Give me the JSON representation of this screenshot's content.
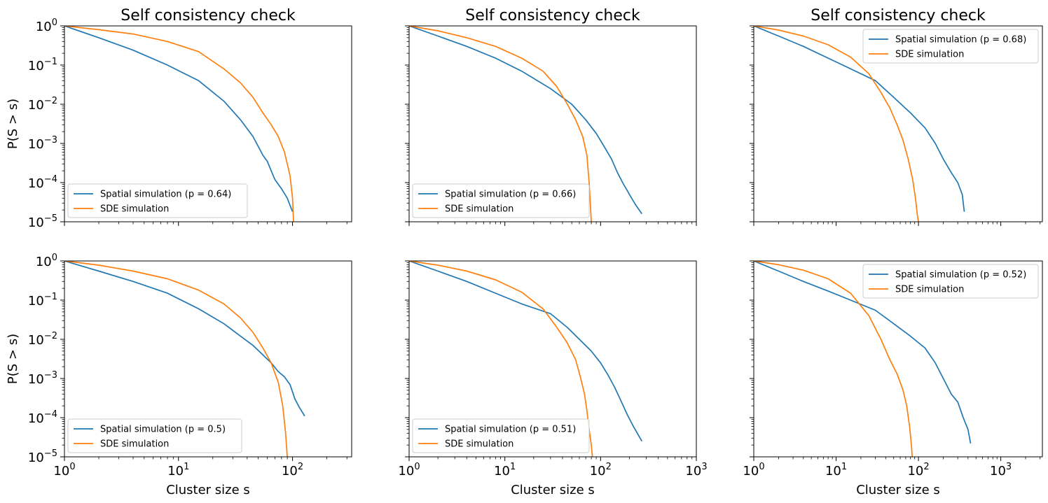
{
  "figure": {
    "colors": {
      "spatial": "#1f77b4",
      "sde": "#ff7f0e"
    }
  },
  "chart_data": [
    {
      "type": "line",
      "title": "Self consistency check",
      "xlabel": "",
      "ylabel": "P(S > s)",
      "xscale": "log",
      "yscale": "log",
      "xlim": [
        1,
        330
      ],
      "ylim": [
        1e-05,
        1
      ],
      "xticks": [],
      "yticks": [
        "10^0",
        "10^-1",
        "10^-2",
        "10^-3",
        "10^-4",
        "10^-5"
      ],
      "legend": "lower-left",
      "series": [
        {
          "name": "Spatial simulation (p = 0.64)",
          "x": [
            1,
            2,
            4,
            8,
            15,
            25,
            35,
            45,
            55,
            60,
            65,
            70,
            80,
            90,
            100
          ],
          "y": [
            1,
            0.5,
            0.24,
            0.1,
            0.04,
            0.012,
            0.004,
            0.0015,
            0.0005,
            0.00035,
            0.0002,
            0.00012,
            7e-05,
            4e-05,
            1.8e-05
          ]
        },
        {
          "name": "SDE simulation",
          "x": [
            1,
            2,
            4,
            8,
            15,
            25,
            35,
            45,
            55,
            65,
            75,
            85,
            95,
            100,
            102
          ],
          "y": [
            1,
            0.8,
            0.62,
            0.4,
            0.22,
            0.08,
            0.035,
            0.015,
            0.006,
            0.003,
            0.0015,
            0.0006,
            0.00015,
            4e-05,
            1e-05
          ]
        }
      ]
    },
    {
      "type": "line",
      "title": "Self consistency check",
      "xlabel": "",
      "ylabel": "",
      "xscale": "log",
      "yscale": "log",
      "xlim": [
        1,
        1000
      ],
      "ylim": [
        1e-05,
        1
      ],
      "xticks": [],
      "yticks": [],
      "legend": "lower-left",
      "series": [
        {
          "name": "Spatial simulation (p = 0.66)",
          "x": [
            1,
            2,
            4,
            8,
            15,
            30,
            50,
            70,
            90,
            110,
            130,
            150,
            170,
            200,
            230,
            270
          ],
          "y": [
            1,
            0.55,
            0.3,
            0.15,
            0.07,
            0.025,
            0.01,
            0.004,
            0.0018,
            0.0008,
            0.0004,
            0.00018,
            0.0001,
            5e-05,
            2.8e-05,
            1.6e-05
          ]
        },
        {
          "name": "SDE simulation",
          "x": [
            1,
            2,
            4,
            8,
            15,
            25,
            35,
            45,
            55,
            65,
            72,
            76,
            78,
            80
          ],
          "y": [
            1,
            0.75,
            0.5,
            0.3,
            0.15,
            0.07,
            0.028,
            0.01,
            0.004,
            0.0015,
            0.0005,
            0.0001,
            3e-05,
            1e-05
          ]
        }
      ]
    },
    {
      "type": "line",
      "title": "Self consistency check",
      "xlabel": "",
      "ylabel": "",
      "xscale": "log",
      "yscale": "log",
      "xlim": [
        1,
        3200
      ],
      "ylim": [
        1e-05,
        1
      ],
      "xticks": [],
      "yticks": [],
      "legend": "upper-right",
      "series": [
        {
          "name": "Spatial simulation (p = 0.68)",
          "x": [
            1,
            2,
            4,
            8,
            15,
            30,
            50,
            80,
            120,
            160,
            200,
            250,
            300,
            340,
            360
          ],
          "y": [
            1,
            0.55,
            0.3,
            0.15,
            0.08,
            0.04,
            0.015,
            0.006,
            0.0025,
            0.001,
            0.0004,
            0.00018,
            0.0001,
            5e-05,
            1.8e-05
          ]
        },
        {
          "name": "SDE simulation",
          "x": [
            1,
            2,
            4,
            8,
            15,
            25,
            35,
            45,
            55,
            65,
            75,
            85,
            92,
            97,
            100
          ],
          "y": [
            1,
            0.78,
            0.55,
            0.33,
            0.16,
            0.06,
            0.02,
            0.008,
            0.003,
            0.0012,
            0.0004,
            0.00012,
            4e-05,
            1.5e-05,
            1e-05
          ]
        }
      ]
    },
    {
      "type": "line",
      "title": "",
      "xlabel": "Cluster size s",
      "ylabel": "P(S > s)",
      "xscale": "log",
      "yscale": "log",
      "xlim": [
        1,
        330
      ],
      "ylim": [
        1e-05,
        1
      ],
      "xticks": [
        "10^0",
        "10^1",
        "10^2"
      ],
      "yticks": [
        "10^0",
        "10^-1",
        "10^-2",
        "10^-3",
        "10^-4",
        "10^-5"
      ],
      "legend": "lower-left",
      "series": [
        {
          "name": "Spatial simulation (p = 0.5)",
          "x": [
            1,
            2,
            4,
            8,
            15,
            25,
            35,
            45,
            55,
            65,
            75,
            85,
            95,
            105,
            115,
            128
          ],
          "y": [
            1,
            0.55,
            0.3,
            0.15,
            0.06,
            0.025,
            0.012,
            0.007,
            0.004,
            0.0025,
            0.0015,
            0.0011,
            0.0007,
            0.0003,
            0.00018,
            0.00011
          ]
        },
        {
          "name": "SDE simulation",
          "x": [
            1,
            2,
            4,
            8,
            15,
            25,
            35,
            45,
            55,
            65,
            75,
            82,
            87,
            90
          ],
          "y": [
            1,
            0.78,
            0.55,
            0.35,
            0.18,
            0.08,
            0.035,
            0.015,
            0.006,
            0.0025,
            0.0008,
            0.0002,
            4e-05,
            1e-05
          ]
        }
      ]
    },
    {
      "type": "line",
      "title": "",
      "xlabel": "Cluster size s",
      "ylabel": "",
      "xscale": "log",
      "yscale": "log",
      "xlim": [
        1,
        1000
      ],
      "ylim": [
        1e-05,
        1
      ],
      "xticks": [
        "10^0",
        "10^1",
        "10^2",
        "10^3"
      ],
      "yticks": [],
      "legend": "lower-left",
      "series": [
        {
          "name": "Spatial simulation (p = 0.51)",
          "x": [
            1,
            2,
            4,
            8,
            15,
            30,
            45,
            60,
            80,
            100,
            120,
            140,
            160,
            190,
            220,
            270
          ],
          "y": [
            1,
            0.55,
            0.3,
            0.15,
            0.08,
            0.045,
            0.02,
            0.01,
            0.005,
            0.0025,
            0.0012,
            0.0006,
            0.0003,
            0.00012,
            6e-05,
            2.5e-05
          ]
        },
        {
          "name": "SDE simulation",
          "x": [
            1,
            2,
            4,
            8,
            15,
            25,
            35,
            45,
            55,
            62,
            68,
            72,
            76,
            80,
            82
          ],
          "y": [
            1,
            0.78,
            0.55,
            0.33,
            0.16,
            0.06,
            0.02,
            0.008,
            0.003,
            0.001,
            0.0004,
            0.00015,
            5e-05,
            2e-05,
            1e-05
          ]
        }
      ]
    },
    {
      "type": "line",
      "title": "",
      "xlabel": "Cluster size s",
      "ylabel": "",
      "xscale": "log",
      "yscale": "log",
      "xlim": [
        1,
        3200
      ],
      "ylim": [
        1e-05,
        1
      ],
      "xticks": [
        "10^0",
        "10^1",
        "10^2",
        "10^3"
      ],
      "yticks": [],
      "legend": "upper-right",
      "series": [
        {
          "name": "Spatial simulation (p = 0.52)",
          "x": [
            1,
            2,
            4,
            8,
            15,
            30,
            50,
            80,
            120,
            160,
            200,
            250,
            300,
            350,
            400,
            430
          ],
          "y": [
            1,
            0.55,
            0.3,
            0.17,
            0.1,
            0.055,
            0.025,
            0.012,
            0.006,
            0.0025,
            0.001,
            0.0004,
            0.00025,
            0.0001,
            5e-05,
            2.2e-05
          ]
        },
        {
          "name": "SDE simulation",
          "x": [
            1,
            2,
            4,
            8,
            15,
            25,
            35,
            45,
            55,
            65,
            72,
            78,
            82,
            84
          ],
          "y": [
            1,
            0.8,
            0.58,
            0.35,
            0.15,
            0.04,
            0.01,
            0.003,
            0.0013,
            0.0005,
            0.0002,
            6e-05,
            2e-05,
            1e-05
          ]
        }
      ]
    }
  ]
}
